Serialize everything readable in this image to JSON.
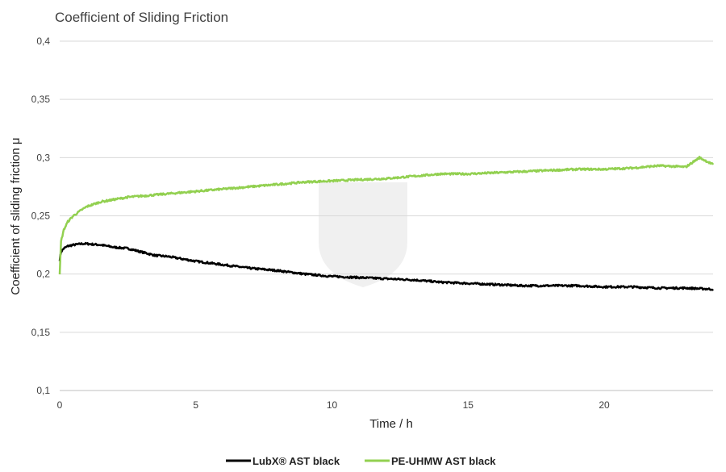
{
  "chart_data": {
    "type": "line",
    "title": "Coefficient of Sliding Friction",
    "xlabel": "Time  / h",
    "ylabel": "Coefficient  of sliding  friction μ",
    "xlim": [
      0,
      24
    ],
    "ylim": [
      0.1,
      0.4
    ],
    "x_ticks": [
      0,
      5,
      10,
      15,
      20
    ],
    "x_tick_labels": [
      "0",
      "5",
      "10",
      "15",
      "20"
    ],
    "y_ticks": [
      0.1,
      0.15,
      0.2,
      0.25,
      0.3,
      0.35,
      0.4
    ],
    "y_tick_labels": [
      "0,1",
      "0,15",
      "0,2",
      "0,25",
      "0,3",
      "0,35",
      "0,4"
    ],
    "grid": "horizontal",
    "legend_position": "bottom",
    "series": [
      {
        "name": "LubX® AST black",
        "color": "#000000",
        "x": [
          0,
          0.05,
          0.15,
          0.3,
          0.5,
          0.8,
          1.0,
          1.5,
          2.0,
          2.5,
          3.0,
          3.5,
          4.0,
          5.0,
          6.0,
          7.0,
          8.0,
          9.0,
          10.0,
          11.0,
          12.0,
          13.0,
          14.0,
          15.0,
          16.0,
          17.0,
          18.0,
          19.0,
          20.0,
          21.0,
          22.0,
          23.0,
          24.0
        ],
        "values": [
          0.212,
          0.219,
          0.222,
          0.224,
          0.225,
          0.226,
          0.226,
          0.225,
          0.223,
          0.222,
          0.219,
          0.216,
          0.215,
          0.211,
          0.208,
          0.205,
          0.203,
          0.2,
          0.198,
          0.197,
          0.196,
          0.195,
          0.193,
          0.192,
          0.191,
          0.19,
          0.19,
          0.19,
          0.189,
          0.189,
          0.188,
          0.188,
          0.187
        ]
      },
      {
        "name": "PE-UHMW AST black",
        "color": "#92d050",
        "x": [
          0,
          0.05,
          0.15,
          0.3,
          0.5,
          0.8,
          1.0,
          1.5,
          2.0,
          2.5,
          3.0,
          4.0,
          5.0,
          6.0,
          7.0,
          8.0,
          9.0,
          10.0,
          11.0,
          12.0,
          13.0,
          14.0,
          15.0,
          16.0,
          17.0,
          18.0,
          19.0,
          20.0,
          21.0,
          22.0,
          23.0,
          23.5,
          24.0
        ],
        "values": [
          0.199,
          0.228,
          0.238,
          0.245,
          0.25,
          0.255,
          0.258,
          0.262,
          0.264,
          0.266,
          0.267,
          0.269,
          0.271,
          0.273,
          0.275,
          0.277,
          0.279,
          0.28,
          0.281,
          0.282,
          0.284,
          0.286,
          0.286,
          0.287,
          0.288,
          0.289,
          0.29,
          0.29,
          0.291,
          0.293,
          0.292,
          0.3,
          0.294
        ]
      }
    ]
  }
}
